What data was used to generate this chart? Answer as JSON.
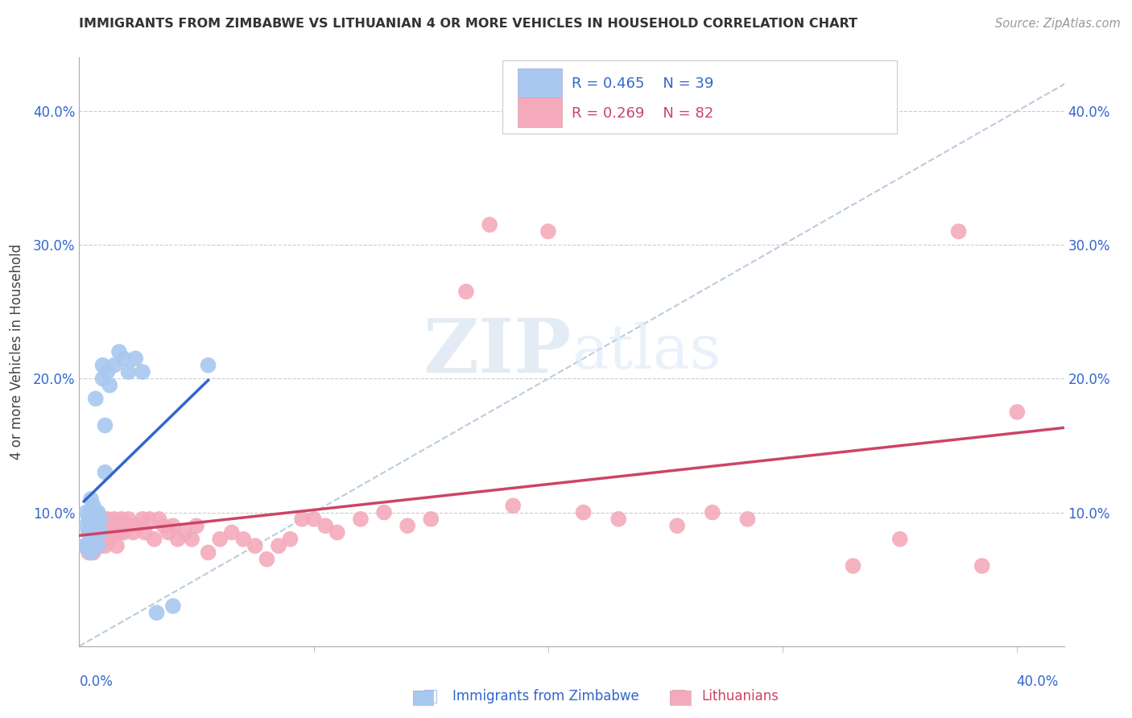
{
  "title": "IMMIGRANTS FROM ZIMBABWE VS LITHUANIAN 4 OR MORE VEHICLES IN HOUSEHOLD CORRELATION CHART",
  "source": "Source: ZipAtlas.com",
  "ylabel": "4 or more Vehicles in Household",
  "legend_r_blue": "R = 0.465",
  "legend_n_blue": "N = 39",
  "legend_r_pink": "R = 0.269",
  "legend_n_pink": "N = 82",
  "legend_label_blue": "Immigrants from Zimbabwe",
  "legend_label_pink": "Lithuanians",
  "color_blue": "#A8C8F0",
  "color_pink": "#F4AABB",
  "line_color_blue": "#3366CC",
  "line_color_pink": "#CC4466",
  "diag_color": "#BBCCDD",
  "watermark_zip": "ZIP",
  "watermark_atlas": "atlas",
  "blue_scatter_x": [
    0.002,
    0.003,
    0.003,
    0.004,
    0.004,
    0.004,
    0.005,
    0.005,
    0.005,
    0.005,
    0.005,
    0.006,
    0.006,
    0.006,
    0.006,
    0.007,
    0.007,
    0.007,
    0.007,
    0.008,
    0.008,
    0.008,
    0.009,
    0.009,
    0.01,
    0.01,
    0.011,
    0.011,
    0.012,
    0.013,
    0.015,
    0.017,
    0.019,
    0.021,
    0.024,
    0.027,
    0.033,
    0.04,
    0.055
  ],
  "blue_scatter_y": [
    0.075,
    0.09,
    0.1,
    0.075,
    0.085,
    0.095,
    0.07,
    0.08,
    0.09,
    0.1,
    0.11,
    0.075,
    0.085,
    0.095,
    0.105,
    0.08,
    0.09,
    0.1,
    0.185,
    0.075,
    0.09,
    0.1,
    0.085,
    0.095,
    0.2,
    0.21,
    0.13,
    0.165,
    0.205,
    0.195,
    0.21,
    0.22,
    0.215,
    0.205,
    0.215,
    0.205,
    0.025,
    0.03,
    0.21
  ],
  "pink_scatter_x": [
    0.003,
    0.004,
    0.004,
    0.005,
    0.005,
    0.005,
    0.006,
    0.006,
    0.006,
    0.006,
    0.007,
    0.007,
    0.007,
    0.008,
    0.008,
    0.008,
    0.009,
    0.009,
    0.009,
    0.01,
    0.01,
    0.01,
    0.011,
    0.011,
    0.012,
    0.012,
    0.013,
    0.013,
    0.014,
    0.015,
    0.015,
    0.016,
    0.017,
    0.018,
    0.019,
    0.02,
    0.021,
    0.022,
    0.023,
    0.025,
    0.027,
    0.028,
    0.03,
    0.032,
    0.034,
    0.036,
    0.038,
    0.04,
    0.042,
    0.045,
    0.048,
    0.05,
    0.055,
    0.06,
    0.065,
    0.07,
    0.075,
    0.08,
    0.085,
    0.09,
    0.095,
    0.1,
    0.105,
    0.11,
    0.12,
    0.13,
    0.14,
    0.15,
    0.165,
    0.175,
    0.185,
    0.2,
    0.215,
    0.23,
    0.255,
    0.27,
    0.285,
    0.33,
    0.35,
    0.375,
    0.385,
    0.4
  ],
  "pink_scatter_y": [
    0.075,
    0.07,
    0.085,
    0.08,
    0.09,
    0.07,
    0.085,
    0.095,
    0.08,
    0.07,
    0.075,
    0.085,
    0.095,
    0.08,
    0.09,
    0.095,
    0.075,
    0.085,
    0.095,
    0.08,
    0.09,
    0.095,
    0.075,
    0.09,
    0.085,
    0.095,
    0.08,
    0.09,
    0.085,
    0.09,
    0.095,
    0.075,
    0.085,
    0.095,
    0.085,
    0.09,
    0.095,
    0.09,
    0.085,
    0.09,
    0.095,
    0.085,
    0.095,
    0.08,
    0.095,
    0.09,
    0.085,
    0.09,
    0.08,
    0.085,
    0.08,
    0.09,
    0.07,
    0.08,
    0.085,
    0.08,
    0.075,
    0.065,
    0.075,
    0.08,
    0.095,
    0.095,
    0.09,
    0.085,
    0.095,
    0.1,
    0.09,
    0.095,
    0.265,
    0.315,
    0.105,
    0.31,
    0.1,
    0.095,
    0.09,
    0.1,
    0.095,
    0.06,
    0.08,
    0.31,
    0.06,
    0.175
  ]
}
